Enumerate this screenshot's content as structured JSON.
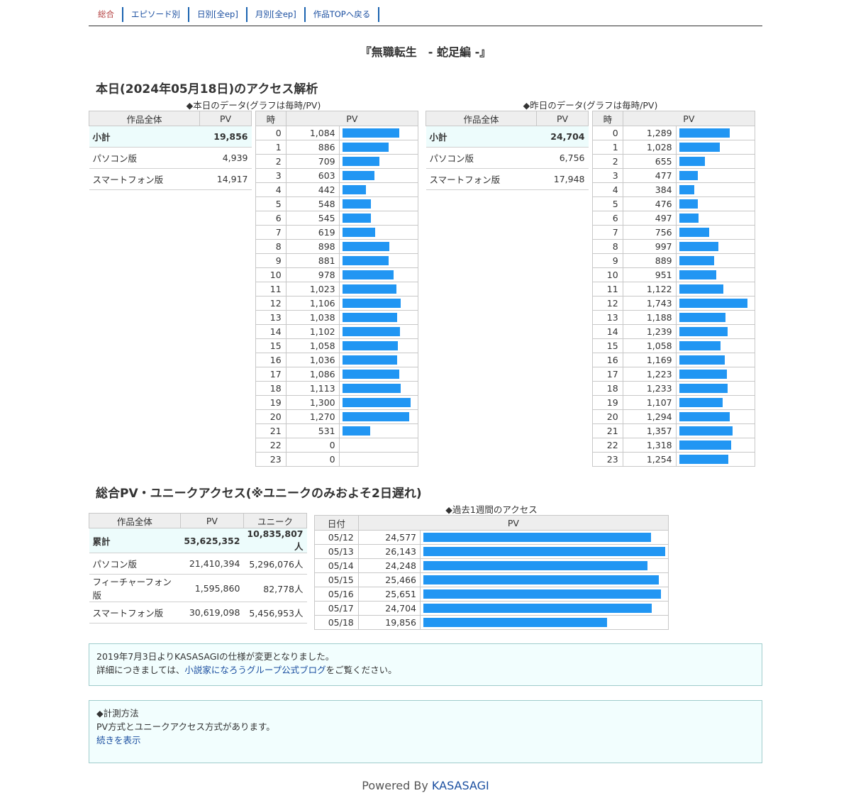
{
  "nav": [
    {
      "label": "総合",
      "current": true
    },
    {
      "label": "エピソード別",
      "current": false
    },
    {
      "label": "日別[全ep]",
      "current": false
    },
    {
      "label": "月別[全ep]",
      "current": false
    },
    {
      "label": "作品TOPへ戻る",
      "current": false
    }
  ],
  "work_title": "『無職転生　- 蛇足編 -』",
  "today_heading": "本日(2024年05月18日)のアクセス解析",
  "today_caption": "◆本日のデータ(グラフは毎時/PV)",
  "yesterday_caption": "◆昨日のデータ(グラフは毎時/PV)",
  "summary_headers": {
    "work": "作品全体",
    "pv": "PV",
    "hour": "時"
  },
  "today_summary": [
    {
      "label": "小計",
      "value": "19,856"
    },
    {
      "label": "パソコン版",
      "value": "4,939"
    },
    {
      "label": "スマートフォン版",
      "value": "14,917"
    }
  ],
  "yesterday_summary": [
    {
      "label": "小計",
      "value": "24,704"
    },
    {
      "label": "パソコン版",
      "value": "6,756"
    },
    {
      "label": "スマートフォン版",
      "value": "17,948"
    }
  ],
  "today_hourly": [
    1084,
    886,
    709,
    603,
    442,
    548,
    545,
    619,
    898,
    881,
    978,
    1023,
    1106,
    1038,
    1102,
    1058,
    1036,
    1086,
    1113,
    1300,
    1270,
    531,
    0,
    0
  ],
  "yesterday_hourly": [
    1289,
    1028,
    655,
    477,
    384,
    476,
    497,
    756,
    997,
    889,
    951,
    1122,
    1743,
    1188,
    1239,
    1058,
    1169,
    1223,
    1233,
    1107,
    1294,
    1357,
    1318,
    1254
  ],
  "total_heading": "総合PV・ユニークアクセス(※ユニークのみおよそ2日遅れ)",
  "total_headers": {
    "work": "作品全体",
    "pv": "PV",
    "unique": "ユニーク"
  },
  "total_rows": [
    {
      "label": "累計",
      "pv": "53,625,352",
      "unique": "10,835,807人"
    },
    {
      "label": "パソコン版",
      "pv": "21,410,394",
      "unique": "5,296,076人"
    },
    {
      "label": "フィーチャーフォン版",
      "pv": "1,595,860",
      "unique": "82,778人"
    },
    {
      "label": "スマートフォン版",
      "pv": "30,619,098",
      "unique": "5,456,953人"
    }
  ],
  "week_caption": "◆過去1週間のアクセス",
  "week_headers": {
    "date": "日付",
    "pv": "PV"
  },
  "week_rows": [
    {
      "date": "05/12",
      "pv": 24577
    },
    {
      "date": "05/13",
      "pv": 26143
    },
    {
      "date": "05/14",
      "pv": 24248
    },
    {
      "date": "05/15",
      "pv": 25466
    },
    {
      "date": "05/16",
      "pv": 25651
    },
    {
      "date": "05/17",
      "pv": 24704
    },
    {
      "date": "05/18",
      "pv": 19856
    }
  ],
  "notice1": {
    "line1": "2019年7月3日よりKASASAGIの仕様が変更となりました。",
    "line2_pre": "詳細につきましては、",
    "line2_link": "小説家になろうグループ公式ブログ",
    "line2_post": "をご覧ください。"
  },
  "notice2": {
    "title": "◆計測方法",
    "body": "PV方式とユニークアクセス方式があります。",
    "link": "続きを表示"
  },
  "footer": {
    "prefix": "Powered By ",
    "link": "KASASAGI"
  },
  "colors": {
    "bar": "#2196f3",
    "link": "#1a4ea0",
    "highlight_row": "#edfcfc"
  }
}
